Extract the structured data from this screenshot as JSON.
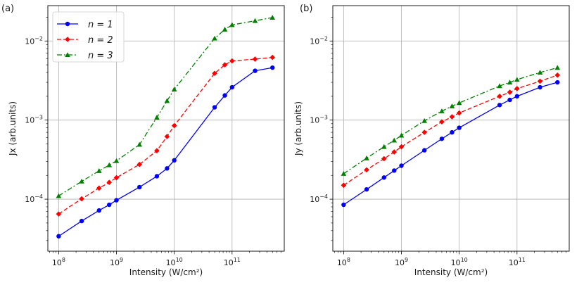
{
  "panels": [
    {
      "label": "(a)",
      "legend": [
        "n = 1",
        "n = 2",
        "n = 3"
      ]
    },
    {
      "label": "(b)",
      "legend": []
    }
  ],
  "chart_data": [
    {
      "type": "line",
      "title": "(a)",
      "xlabel": "Intensity (W/cm²)",
      "ylabel": "Jx (arb.units)",
      "xscale": "log",
      "yscale": "log",
      "xlim": [
        65000000.0,
        800000000000.0
      ],
      "ylim": [
        2.2e-05,
        0.028
      ],
      "grid": true,
      "legend_position": "top-left",
      "xticks": [
        {
          "value": 100000000.0,
          "base": "10",
          "exp": "8"
        },
        {
          "value": 1000000000.0,
          "base": "10",
          "exp": "9"
        },
        {
          "value": 10000000000.0,
          "base": "10",
          "exp": "10"
        },
        {
          "value": 100000000000.0,
          "base": "10",
          "exp": "11"
        }
      ],
      "yticks": [
        {
          "value": 0.0001,
          "base": "10",
          "exp": "−4"
        },
        {
          "value": 0.001,
          "base": "10",
          "exp": "−3"
        },
        {
          "value": 0.01,
          "base": "10",
          "exp": "−2"
        }
      ],
      "x": [
        100000000.0,
        250000000.0,
        500000000.0,
        750000000.0,
        1000000000.0,
        2500000000.0,
        5000000000.0,
        7500000000.0,
        10000000000.0,
        50000000000.0,
        75000000000.0,
        100000000000.0,
        250000000000.0,
        500000000000.0
      ],
      "series": [
        {
          "name": "n = 1",
          "color": "#0000ff",
          "marker": "circle",
          "dash": "solid",
          "values": [
            3.4e-05,
            5.3e-05,
            7.2e-05,
            8.5e-05,
            9.7e-05,
            0.000142,
            0.000195,
            0.000245,
            0.00031,
            0.00145,
            0.00205,
            0.0026,
            0.0042,
            0.0046
          ]
        },
        {
          "name": "n = 2",
          "color": "#ff0000",
          "marker": "diamond",
          "dash": "dashed",
          "values": [
            6.5e-05,
            0.000101,
            0.000138,
            0.000163,
            0.000187,
            0.000275,
            0.00041,
            0.00062,
            0.00085,
            0.0039,
            0.005,
            0.0056,
            0.0059,
            0.0062
          ]
        },
        {
          "name": "n = 3",
          "color": "#008000",
          "marker": "triangle",
          "dash": "dashdot",
          "values": [
            0.00011,
            0.000168,
            0.000228,
            0.00027,
            0.000305,
            0.00049,
            0.00108,
            0.00175,
            0.00245,
            0.0108,
            0.014,
            0.016,
            0.018,
            0.0198
          ]
        }
      ]
    },
    {
      "type": "line",
      "title": "(b)",
      "xlabel": "Intensity (W/cm²)",
      "ylabel": "Jy (arb.units)",
      "xscale": "log",
      "yscale": "log",
      "xlim": [
        65000000.0,
        800000000000.0
      ],
      "ylim": [
        2.2e-05,
        0.028
      ],
      "grid": true,
      "legend_position": "none",
      "xticks": [
        {
          "value": 100000000.0,
          "base": "10",
          "exp": "8"
        },
        {
          "value": 1000000000.0,
          "base": "10",
          "exp": "9"
        },
        {
          "value": 10000000000.0,
          "base": "10",
          "exp": "10"
        },
        {
          "value": 100000000000.0,
          "base": "10",
          "exp": "11"
        }
      ],
      "yticks": [
        {
          "value": 0.0001,
          "base": "10",
          "exp": "−4"
        },
        {
          "value": 0.001,
          "base": "10",
          "exp": "−3"
        },
        {
          "value": 0.01,
          "base": "10",
          "exp": "−2"
        }
      ],
      "x": [
        100000000.0,
        250000000.0,
        500000000.0,
        750000000.0,
        1000000000.0,
        2500000000.0,
        5000000000.0,
        7500000000.0,
        10000000000.0,
        50000000000.0,
        75000000000.0,
        100000000000.0,
        250000000000.0,
        500000000000.0
      ],
      "series": [
        {
          "name": "n = 1",
          "color": "#0000ff",
          "marker": "circle",
          "dash": "solid",
          "values": [
            8.5e-05,
            0.000133,
            0.000188,
            0.00023,
            0.000265,
            0.000415,
            0.00058,
            0.0007,
            0.0008,
            0.00155,
            0.0018,
            0.002,
            0.0026,
            0.003
          ]
        },
        {
          "name": "n = 2",
          "color": "#ff0000",
          "marker": "diamond",
          "dash": "dashed",
          "values": [
            0.00015,
            0.000235,
            0.000325,
            0.000395,
            0.00046,
            0.0007,
            0.00095,
            0.0011,
            0.00123,
            0.002,
            0.00225,
            0.0025,
            0.0031,
            0.0037
          ]
        },
        {
          "name": "n = 3",
          "color": "#008000",
          "marker": "triangle",
          "dash": "dashdot",
          "values": [
            0.00021,
            0.00033,
            0.00046,
            0.000555,
            0.00064,
            0.00098,
            0.0013,
            0.0015,
            0.00165,
            0.0027,
            0.003,
            0.00325,
            0.004,
            0.0046
          ]
        }
      ]
    }
  ]
}
